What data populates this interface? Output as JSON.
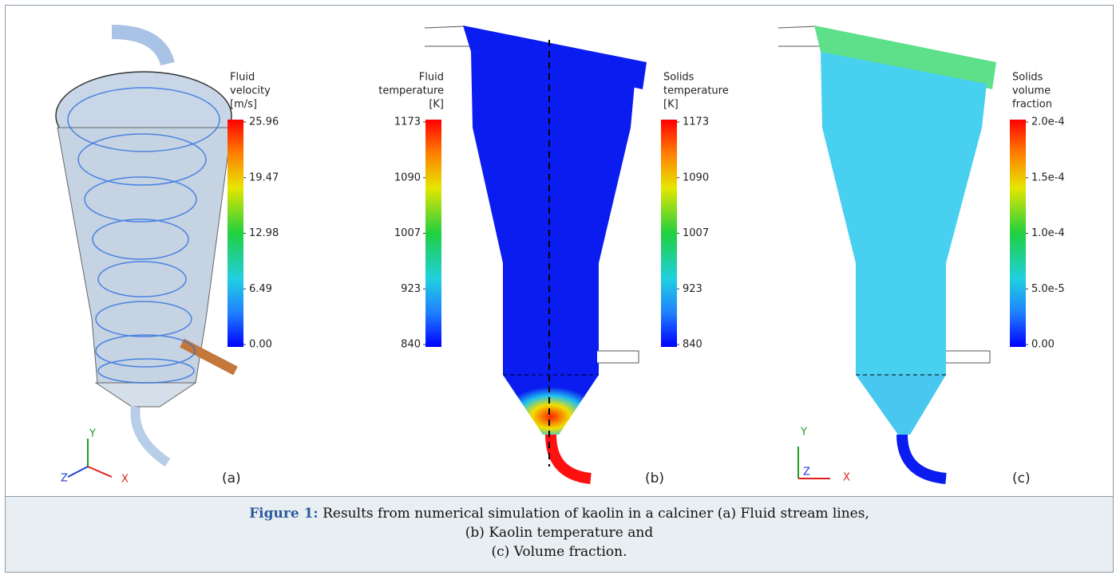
{
  "panels": [
    {
      "label": "(a)",
      "axes": [
        "Y",
        "Z",
        "X"
      ],
      "colorbars": [
        {
          "title": [
            "Fluid",
            "velocity",
            "[m/s]"
          ],
          "ticks": [
            "25.96",
            "19.47",
            "12.98",
            "6.49",
            "0.00"
          ]
        }
      ]
    },
    {
      "label": "(b)",
      "colorbars": [
        {
          "title": [
            "Fluid",
            "temperature",
            "[K]"
          ],
          "ticks": [
            "1173",
            "1090",
            "1007",
            "923",
            "840"
          ]
        },
        {
          "title": [
            "Solids",
            "temperature",
            "[K]"
          ],
          "ticks": [
            "1173",
            "1090",
            "1007",
            "923",
            "840"
          ]
        }
      ]
    },
    {
      "label": "(c)",
      "axes": [
        "Y",
        "Z",
        "X"
      ],
      "colorbars": [
        {
          "title": [
            "Solids",
            "volume",
            "fraction"
          ],
          "ticks": [
            "2.0e-4",
            "1.5e-4",
            "1.0e-4",
            "5.0e-5",
            "0.00"
          ]
        }
      ]
    }
  ],
  "caption": {
    "label": "Figure 1:",
    "lines": [
      "Results from numerical simulation of kaolin in a calciner (a) Fluid stream lines,",
      "(b) Kaolin temperature and",
      "(c) Volume fraction."
    ]
  }
}
